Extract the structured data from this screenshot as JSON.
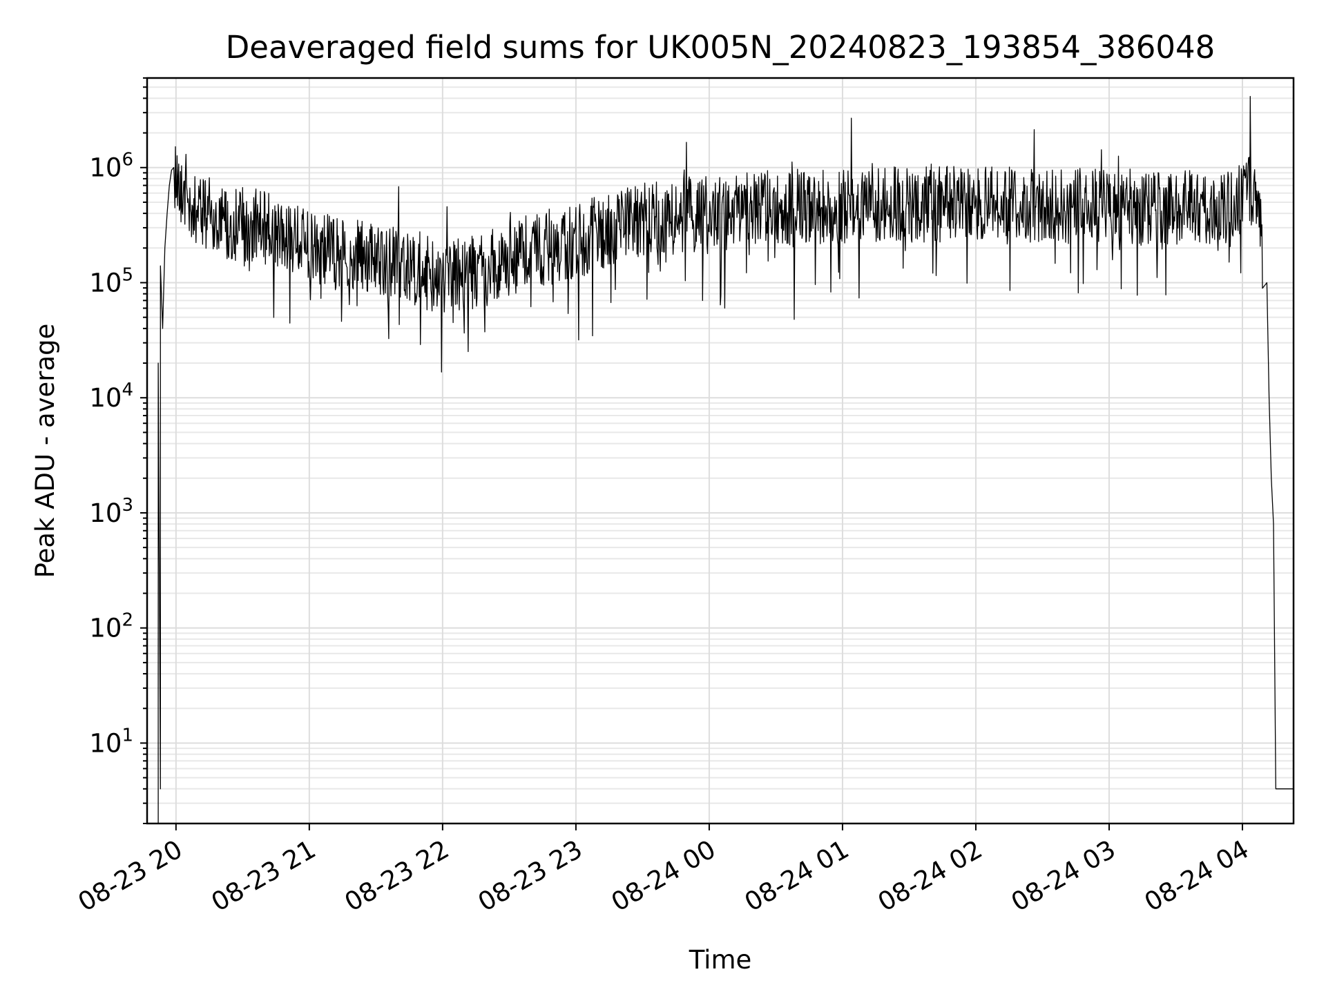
{
  "chart_data": {
    "type": "line",
    "title": "Deaveraged field sums for UK005N_20240823_193854_386048",
    "xlabel": "Time",
    "ylabel": "Peak ADU - average",
    "yscale": "log",
    "xlim": [
      "2024-08-23 19:47",
      "2024-08-24 04:23"
    ],
    "ylim": [
      2,
      6000000
    ],
    "grid": true,
    "legend": "none",
    "line_color": "#000000",
    "x_ticks": [
      {
        "value": "2024-08-23 20:00",
        "label": "08-23 20"
      },
      {
        "value": "2024-08-23 21:00",
        "label": "08-23 21"
      },
      {
        "value": "2024-08-23 22:00",
        "label": "08-23 22"
      },
      {
        "value": "2024-08-23 23:00",
        "label": "08-23 23"
      },
      {
        "value": "2024-08-24 00:00",
        "label": "08-24 00"
      },
      {
        "value": "2024-08-24 01:00",
        "label": "08-24 01"
      },
      {
        "value": "2024-08-24 02:00",
        "label": "08-24 02"
      },
      {
        "value": "2024-08-24 03:00",
        "label": "08-24 03"
      },
      {
        "value": "2024-08-24 04:00",
        "label": "08-24 04"
      }
    ],
    "y_ticks": [
      {
        "value": 10,
        "base": "10",
        "exp": "1"
      },
      {
        "value": 100,
        "base": "10",
        "exp": "2"
      },
      {
        "value": 1000,
        "base": "10",
        "exp": "3"
      },
      {
        "value": 10000,
        "base": "10",
        "exp": "4"
      },
      {
        "value": 100000,
        "base": "10",
        "exp": "5"
      },
      {
        "value": 1000000,
        "base": "10",
        "exp": "6"
      }
    ],
    "series": [
      {
        "x": [
          "2024-08-23 19:52",
          "2024-08-23 19:52",
          "2024-08-23 19:53",
          "2024-08-23 19:53",
          "2024-08-23 19:54",
          "2024-08-23 19:55",
          "2024-08-23 19:56",
          "2024-08-23 19:57",
          "2024-08-23 19:58",
          "2024-08-23 19:59",
          "2024-08-23 20:00",
          "2024-08-23 20:02",
          "2024-08-23 20:05",
          "2024-08-23 20:08",
          "2024-08-23 20:10",
          "2024-08-23 20:15",
          "2024-08-23 20:20",
          "2024-08-23 20:30",
          "2024-08-23 20:40",
          "2024-08-23 20:50",
          "2024-08-23 21:00",
          "2024-08-23 21:15",
          "2024-08-23 21:30",
          "2024-08-23 21:45",
          "2024-08-23 22:00",
          "2024-08-23 22:15",
          "2024-08-23 22:30",
          "2024-08-23 22:45",
          "2024-08-23 23:00",
          "2024-08-23 23:15",
          "2024-08-23 23:30",
          "2024-08-23 23:45",
          "2024-08-24 00:00",
          "2024-08-24 00:15",
          "2024-08-24 00:30",
          "2024-08-24 00:45",
          "2024-08-24 01:00",
          "2024-08-24 01:30",
          "2024-08-24 02:00",
          "2024-08-24 02:30",
          "2024-08-24 03:00",
          "2024-08-24 03:30",
          "2024-08-24 03:50",
          "2024-08-24 04:00",
          "2024-08-24 04:03",
          "2024-08-24 04:05",
          "2024-08-24 04:07",
          "2024-08-24 04:09",
          "2024-08-24 04:11",
          "2024-08-24 04:12",
          "2024-08-24 04:13",
          "2024-08-24 04:14",
          "2024-08-24 04:15",
          "2024-08-24 04:23"
        ],
        "y": [
          2,
          20000,
          4,
          140000,
          40000,
          200000,
          400000,
          700000,
          950000,
          1000000,
          900000,
          700000,
          600000,
          500000,
          450000,
          400000,
          350000,
          320000,
          300000,
          250000,
          200000,
          180000,
          160000,
          140000,
          110000,
          120000,
          160000,
          200000,
          220000,
          300000,
          350000,
          380000,
          400000,
          420000,
          450000,
          460000,
          470000,
          480000,
          480000,
          470000,
          460000,
          450000,
          450000,
          520000,
          600000,
          700000,
          500000,
          300000,
          100000,
          10000,
          2000,
          800,
          4,
          4
        ]
      }
    ]
  }
}
